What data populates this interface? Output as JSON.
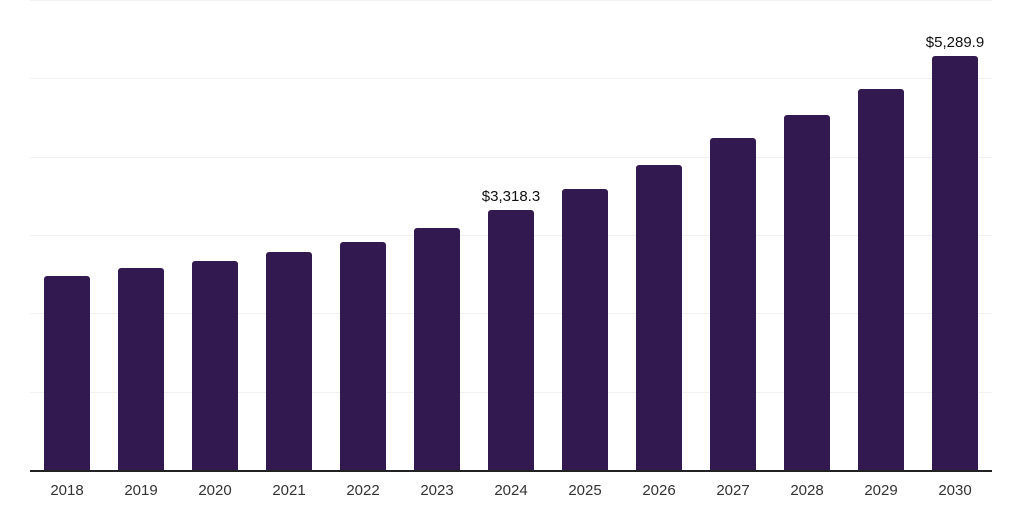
{
  "chart_data": {
    "type": "bar",
    "title": "",
    "xlabel": "",
    "ylabel": "",
    "categories": [
      "2018",
      "2019",
      "2020",
      "2021",
      "2022",
      "2023",
      "2024",
      "2025",
      "2026",
      "2027",
      "2028",
      "2029",
      "2030"
    ],
    "values": [
      2476,
      2575,
      2664,
      2779,
      2914,
      3085,
      3318.3,
      3587,
      3897,
      4238,
      4532,
      4863,
      5289.9
    ],
    "data_labels": [
      null,
      null,
      null,
      null,
      null,
      null,
      "$3,318.3",
      null,
      null,
      null,
      null,
      null,
      "$5,289.9"
    ],
    "ylim": [
      0,
      6000
    ],
    "gridline_step": 1000,
    "grid": true,
    "legend": false,
    "colors": {
      "bar": "#321a50",
      "gridline": "#f2f2f2",
      "axis_line": "#222222",
      "value_label": "#111111",
      "tick_label": "#333333",
      "background": "#ffffff"
    }
  }
}
